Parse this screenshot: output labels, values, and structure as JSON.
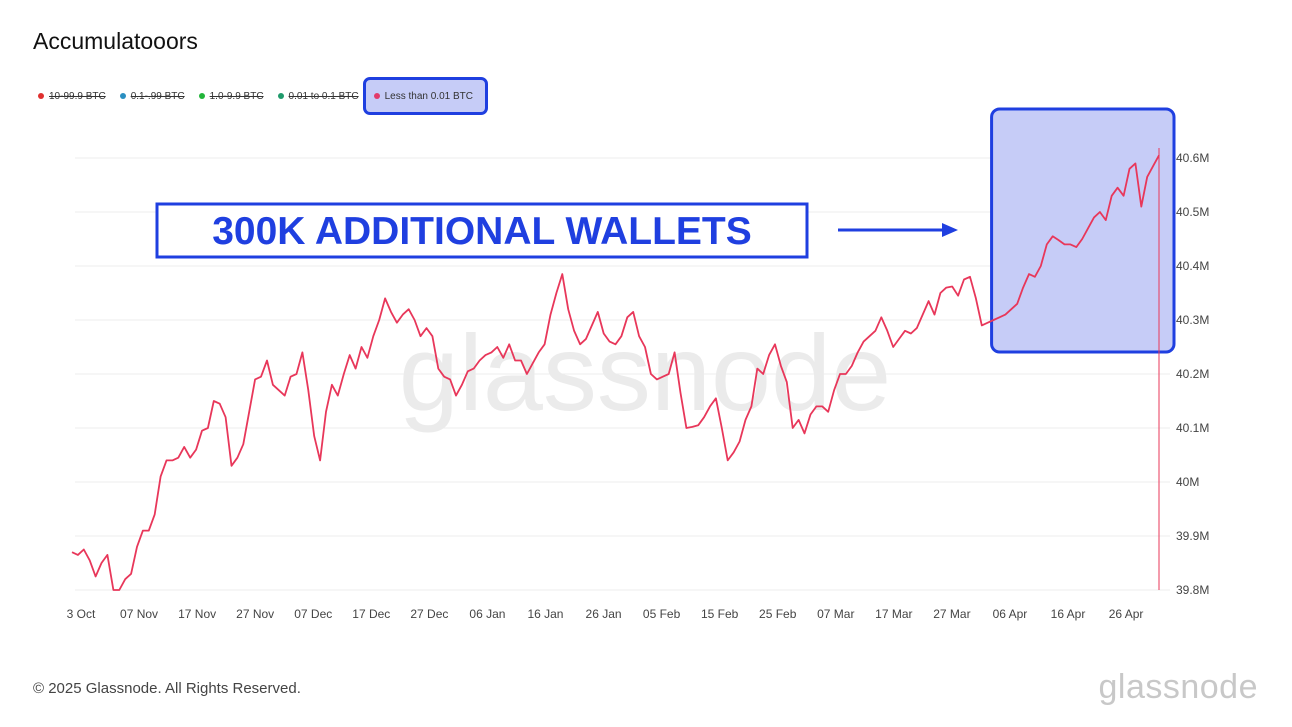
{
  "page": {
    "title": "Accumulatooors",
    "footer": "© 2025 Glassnode. All Rights Reserved.",
    "footer_logo": "glassnode",
    "watermark": "glassnode"
  },
  "legend": [
    {
      "label": "10-99.9 BTC",
      "color": "#e0302f",
      "active": false
    },
    {
      "label": "0.1-.99 BTC",
      "color": "#2a8fc1",
      "active": false
    },
    {
      "label": "1.0-9.9 BTC",
      "color": "#22b53a",
      "active": false
    },
    {
      "label": "0.01 to 0.1 BTC",
      "color": "#1f9a6b",
      "active": false
    },
    {
      "label": "Less than 0.01 BTC",
      "color": "#e23a6a",
      "active": true
    }
  ],
  "annotation": {
    "text": "300K ADDITIONAL WALLETS",
    "color": "#1f3fe0",
    "highlight_fill": "#c6ccf7"
  },
  "chart_data": {
    "type": "line",
    "series": [
      {
        "name": "Less than 0.01 BTC",
        "color": "#e8375a",
        "values": [
          39.87,
          39.865,
          39.875,
          39.855,
          39.825,
          39.85,
          39.865,
          39.8,
          39.8,
          39.82,
          39.83,
          39.88,
          39.91,
          39.91,
          39.94,
          40.01,
          40.04,
          40.04,
          40.045,
          40.065,
          40.045,
          40.06,
          40.095,
          40.1,
          40.15,
          40.145,
          40.12,
          40.03,
          40.045,
          40.07,
          40.13,
          40.19,
          40.195,
          40.225,
          40.18,
          40.17,
          40.16,
          40.195,
          40.2,
          40.24,
          40.17,
          40.085,
          40.04,
          40.13,
          40.18,
          40.16,
          40.2,
          40.235,
          40.21,
          40.25,
          40.23,
          40.27,
          40.3,
          40.34,
          40.315,
          40.295,
          40.31,
          40.32,
          40.3,
          40.27,
          40.285,
          40.27,
          40.21,
          40.195,
          40.19,
          40.16,
          40.18,
          40.205,
          40.21,
          40.225,
          40.235,
          40.24,
          40.25,
          40.23,
          40.255,
          40.225,
          40.225,
          40.2,
          40.22,
          40.24,
          40.255,
          40.31,
          40.35,
          40.385,
          40.32,
          40.28,
          40.255,
          40.265,
          40.29,
          40.315,
          40.275,
          40.26,
          40.255,
          40.27,
          40.305,
          40.315,
          40.27,
          40.25,
          40.2,
          40.19,
          40.195,
          40.2,
          40.24,
          40.165,
          40.1,
          40.102,
          40.105,
          40.12,
          40.14,
          40.155,
          40.1,
          40.04,
          40.055,
          40.075,
          40.115,
          40.14,
          40.21,
          40.2,
          40.235,
          40.255,
          40.215,
          40.185,
          40.1,
          40.115,
          40.09,
          40.125,
          40.14,
          40.14,
          40.13,
          40.17,
          40.2,
          40.2,
          40.215,
          40.24,
          40.26,
          40.27,
          40.28,
          40.305,
          40.28,
          40.25,
          40.265,
          40.28,
          40.275,
          40.285,
          40.31,
          40.335,
          40.31,
          40.35,
          40.36,
          40.362,
          40.345,
          40.375,
          40.38,
          40.34,
          40.29,
          40.295,
          40.3,
          40.305,
          40.31,
          40.32,
          40.33,
          40.36,
          40.385,
          40.38,
          40.4,
          40.44,
          40.455,
          40.448,
          40.44,
          40.44,
          40.435,
          40.45,
          40.47,
          40.49,
          40.5,
          40.485,
          40.53,
          40.545,
          40.53,
          40.58,
          40.59,
          40.51,
          40.565,
          40.585,
          40.605
        ]
      }
    ],
    "x_tick_labels": [
      "3 Oct",
      "07 Nov",
      "17 Nov",
      "27 Nov",
      "07 Dec",
      "17 Dec",
      "27 Dec",
      "06 Jan",
      "16 Jan",
      "26 Jan",
      "05 Feb",
      "15 Feb",
      "25 Feb",
      "07 Mar",
      "17 Mar",
      "27 Mar",
      "06 Apr",
      "16 Apr",
      "26 Apr"
    ],
    "y_ticks": [
      39.8,
      39.9,
      40.0,
      40.1,
      40.2,
      40.3,
      40.4,
      40.5,
      40.6
    ],
    "y_tick_labels": [
      "39.8M",
      "39.9M",
      "40M",
      "40.1M",
      "40.2M",
      "40.3M",
      "40.4M",
      "40.5M",
      "40.6M"
    ],
    "ylim": [
      39.8,
      40.6
    ],
    "grid": true,
    "y_axis_side": "right",
    "highlight_start_index": 156
  }
}
